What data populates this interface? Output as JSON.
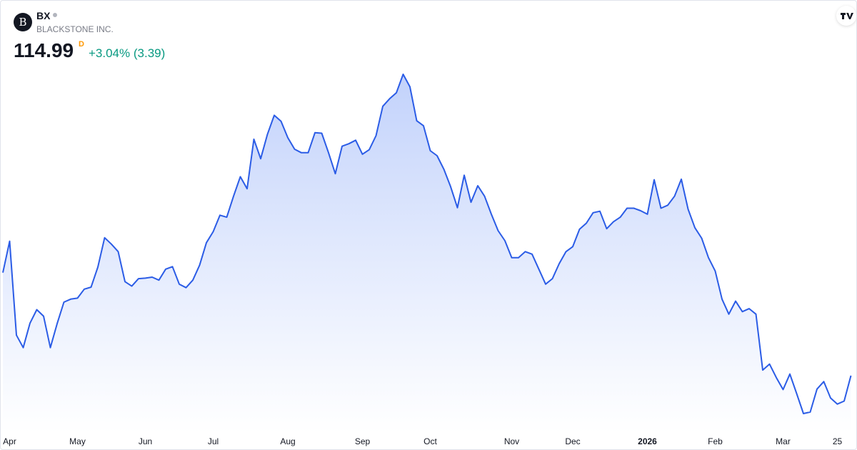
{
  "header": {
    "logo_letter": "B",
    "symbol": "BX",
    "company": "BLACKSTONE INC.",
    "last_price": 114.99,
    "interval_badge": "D",
    "change": "+3.04% (3.39)"
  },
  "chart_data": {
    "type": "area",
    "color": "#2b5ce6",
    "categories": [
      null,
      "Apr",
      null,
      null,
      null,
      null,
      null,
      null,
      null,
      null,
      null,
      "May",
      null,
      null,
      null,
      null,
      null,
      null,
      null,
      null,
      null,
      "Jun",
      null,
      null,
      null,
      null,
      null,
      null,
      null,
      null,
      null,
      "Jul",
      null,
      null,
      null,
      null,
      null,
      null,
      null,
      null,
      null,
      null,
      "Aug",
      null,
      null,
      null,
      null,
      null,
      null,
      null,
      null,
      null,
      null,
      "Sep",
      null,
      null,
      null,
      null,
      null,
      null,
      null,
      null,
      null,
      "Oct",
      null,
      null,
      null,
      null,
      null,
      null,
      null,
      null,
      null,
      null,
      null,
      "Nov",
      null,
      null,
      null,
      null,
      null,
      null,
      null,
      null,
      "Dec",
      null,
      null,
      null,
      null,
      null,
      null,
      null,
      null,
      null,
      null,
      "2026",
      null,
      null,
      null,
      null,
      null,
      null,
      null,
      null,
      null,
      "Feb",
      null,
      null,
      null,
      null,
      null,
      null,
      null,
      null,
      null,
      "Mar",
      null,
      null,
      null,
      null,
      null,
      null,
      null,
      "25",
      null,
      null
    ],
    "values": [
      135.6,
      141.9,
      123.1,
      120.6,
      125.5,
      128.2,
      126.9,
      120.6,
      125.4,
      129.7,
      130.3,
      130.5,
      132.3,
      132.7,
      136.7,
      142.6,
      141.3,
      139.8,
      133.8,
      132.9,
      134.4,
      134.5,
      134.7,
      134.1,
      136.3,
      136.8,
      133.3,
      132.6,
      134.1,
      137.1,
      141.6,
      143.8,
      147.1,
      146.7,
      150.9,
      154.8,
      152.4,
      162.3,
      158.4,
      163.3,
      167.1,
      165.9,
      162.6,
      160.3,
      159.6,
      159.6,
      163.6,
      163.5,
      159.6,
      155.4,
      160.9,
      161.4,
      162.1,
      159.3,
      160.2,
      163.0,
      168.9,
      170.4,
      171.6,
      175.3,
      172.8,
      166.0,
      165.0,
      160.0,
      159.0,
      156.3,
      152.8,
      148.6,
      155.1,
      149.7,
      153.0,
      150.9,
      147.3,
      144.0,
      142.0,
      138.6,
      138.6,
      139.8,
      139.3,
      136.3,
      133.3,
      134.4,
      137.4,
      139.8,
      140.8,
      144.3,
      145.5,
      147.6,
      147.9,
      144.4,
      145.8,
      146.7,
      148.5,
      148.5,
      148.0,
      147.3,
      154.2,
      148.5,
      149.1,
      150.9,
      154.3,
      148.3,
      144.6,
      142.5,
      138.6,
      135.9,
      130.3,
      127.3,
      129.9,
      127.8,
      128.4,
      127.3,
      116.1,
      117.3,
      114.6,
      112.2,
      115.3,
      111.4,
      107.4,
      107.7,
      112.3,
      113.8,
      110.5,
      109.3,
      109.9,
      114.99
    ]
  }
}
